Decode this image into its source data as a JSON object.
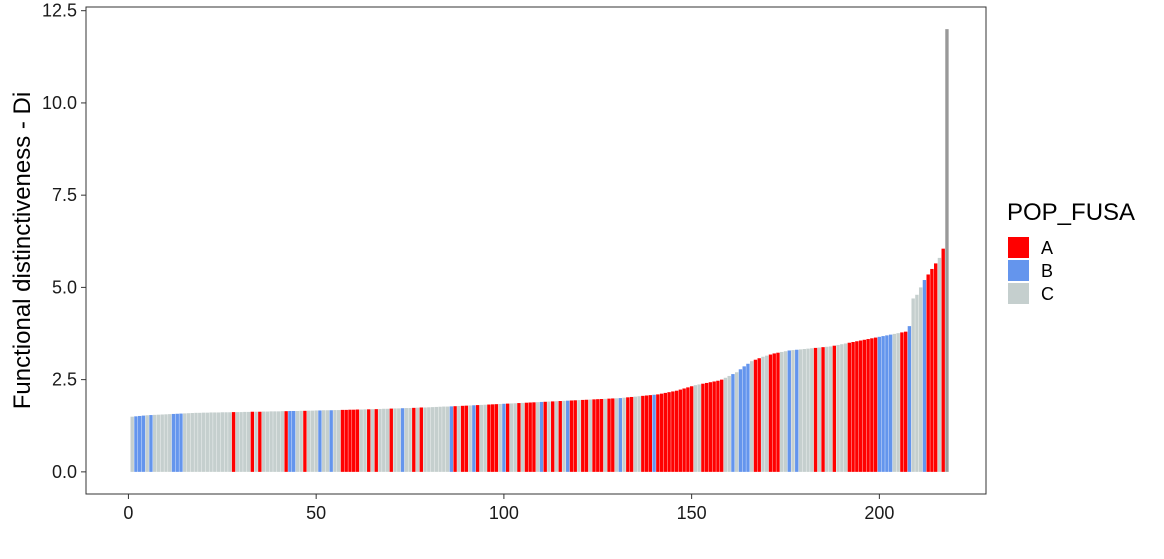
{
  "chart_data": {
    "type": "bar",
    "title": "",
    "xlabel": "",
    "ylabel": "Functional distinctiveness - Di",
    "xlim": [
      -11.3,
      228.4
    ],
    "ylim": [
      -0.6,
      12.6
    ],
    "xticks": [
      0,
      50,
      100,
      150,
      200
    ],
    "yticks": [
      0.0,
      2.5,
      5.0,
      7.5,
      10.0,
      12.5
    ],
    "xtick_labels": [
      "0",
      "50",
      "100",
      "150",
      "200"
    ],
    "ytick_labels": [
      "0.0",
      "2.5",
      "5.0",
      "7.5",
      "10.0",
      "12.5"
    ],
    "grid": false,
    "legend": {
      "title": "POP_FUSA",
      "position": "right",
      "entries": [
        {
          "key": "A",
          "label": "A",
          "color": "#ff0000"
        },
        {
          "key": "B",
          "label": "B",
          "color": "#6495ed"
        },
        {
          "key": "C",
          "label": "C",
          "color": "#c5cfce"
        }
      ]
    },
    "categories": "CBBBCBCCCCCBBBCCCCCCCCCCCCCACCCCACACCCCCCABBCCACCCBCCBCCAAAAACCACACCCACCBCCACACCCCCCCBACAACBACCAAACBACCACAAACBACACACBAACAACAAACAACBCAACCAAABAAAAAAAAAACCAAAAAACCBCBBBCAACCAAACCBCBCCCCACACCACCCAAAAAAAABBBBCCAABCCCBAAACA",
    "values": [
      1.495,
      1.505,
      1.515,
      1.525,
      1.535,
      1.54,
      1.545,
      1.55,
      1.555,
      1.56,
      1.565,
      1.57,
      1.575,
      1.58,
      1.585,
      1.59,
      1.595,
      1.6,
      1.6,
      1.605,
      1.605,
      1.61,
      1.61,
      1.61,
      1.615,
      1.615,
      1.615,
      1.62,
      1.62,
      1.62,
      1.625,
      1.625,
      1.63,
      1.63,
      1.63,
      1.635,
      1.635,
      1.64,
      1.64,
      1.64,
      1.645,
      1.645,
      1.65,
      1.65,
      1.65,
      1.655,
      1.655,
      1.66,
      1.66,
      1.665,
      1.665,
      1.67,
      1.67,
      1.67,
      1.675,
      1.675,
      1.68,
      1.68,
      1.685,
      1.685,
      1.69,
      1.69,
      1.695,
      1.695,
      1.7,
      1.7,
      1.705,
      1.71,
      1.71,
      1.715,
      1.72,
      1.72,
      1.725,
      1.73,
      1.73,
      1.735,
      1.74,
      1.745,
      1.745,
      1.75,
      1.755,
      1.76,
      1.765,
      1.77,
      1.77,
      1.775,
      1.78,
      1.785,
      1.79,
      1.795,
      1.8,
      1.805,
      1.81,
      1.815,
      1.82,
      1.825,
      1.83,
      1.835,
      1.84,
      1.845,
      1.85,
      1.855,
      1.86,
      1.865,
      1.87,
      1.875,
      1.88,
      1.885,
      1.89,
      1.895,
      1.9,
      1.905,
      1.91,
      1.915,
      1.92,
      1.925,
      1.93,
      1.935,
      1.94,
      1.945,
      1.95,
      1.955,
      1.96,
      1.965,
      1.97,
      1.975,
      1.98,
      1.985,
      1.99,
      1.995,
      2.0,
      2.01,
      2.02,
      2.03,
      2.04,
      2.05,
      2.06,
      2.07,
      2.08,
      2.09,
      2.1,
      2.12,
      2.14,
      2.16,
      2.18,
      2.2,
      2.23,
      2.26,
      2.29,
      2.32,
      2.35,
      2.37,
      2.39,
      2.41,
      2.43,
      2.45,
      2.47,
      2.5,
      2.55,
      2.6,
      2.65,
      2.7,
      2.78,
      2.86,
      2.93,
      3.0,
      3.04,
      3.08,
      3.12,
      3.15,
      3.18,
      3.21,
      3.23,
      3.25,
      3.27,
      3.29,
      3.3,
      3.31,
      3.32,
      3.33,
      3.34,
      3.35,
      3.36,
      3.37,
      3.38,
      3.39,
      3.4,
      3.42,
      3.44,
      3.46,
      3.48,
      3.5,
      3.52,
      3.54,
      3.56,
      3.58,
      3.6,
      3.62,
      3.64,
      3.66,
      3.68,
      3.7,
      3.72,
      3.74,
      3.76,
      3.78,
      3.8,
      3.95,
      4.7,
      4.8,
      5.0,
      5.2,
      5.35,
      5.5,
      5.65,
      5.8,
      6.05,
      12.0
    ]
  }
}
